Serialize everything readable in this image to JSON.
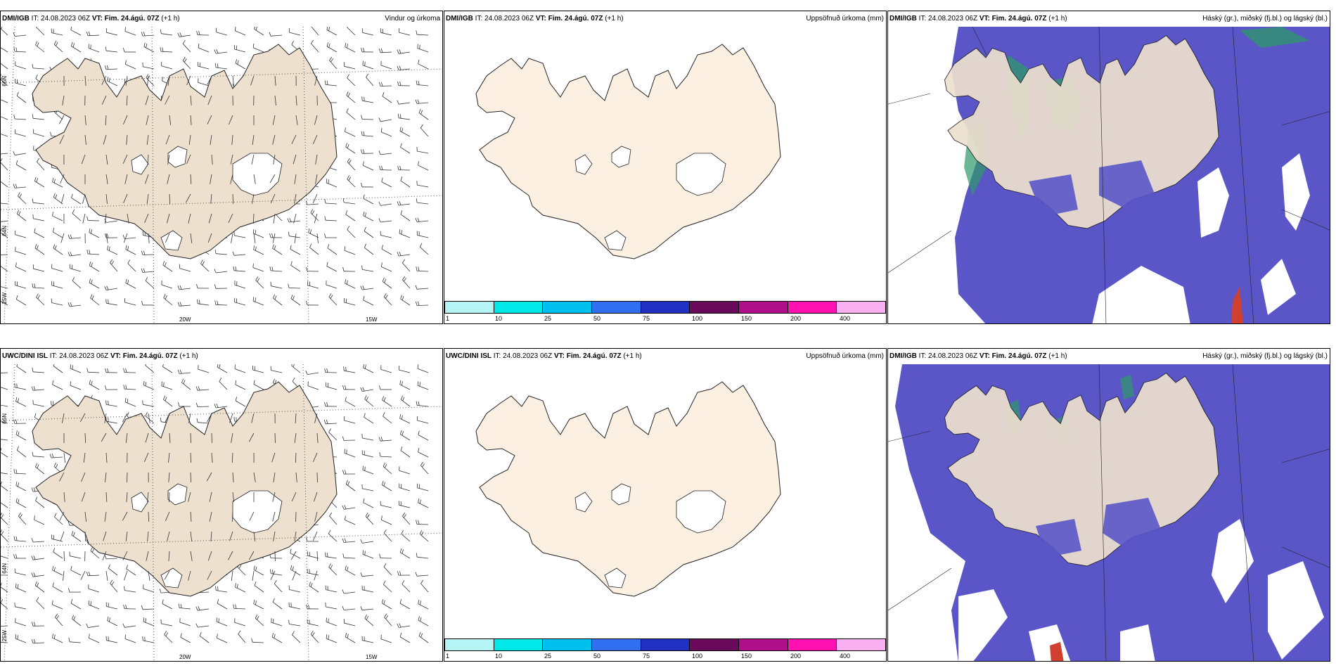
{
  "header": {
    "model_dmi": "DMI/IGB",
    "model_uwc": "UWC/DINI ISL",
    "it_label": "IT: 24.08.2023 06Z",
    "vt_label": "VT: Fim. 24.ágú. 07Z",
    "lead": "(+1 h)"
  },
  "titles": {
    "wind": "Vindur og úrkoma",
    "precip": "Uppsöfnuð úrkoma (mm)",
    "cloud": "Háský (gr.), miðský (fj.bl.) og lágský (bl.)"
  },
  "axes": {
    "lon_20w": "20W",
    "lon_15w": "15W",
    "lat_66n": "66N",
    "lat_64n": "64N",
    "lon_25w": "25W"
  },
  "colorbar": {
    "ticks": [
      "1",
      "10",
      "25",
      "50",
      "75",
      "100",
      "150",
      "200",
      "400"
    ],
    "colors": [
      "#b4f4f4",
      "#00e8e8",
      "#00c0f0",
      "#3070f0",
      "#2030c0",
      "#6a0a5a",
      "#b0108a",
      "#ff10b0",
      "#f8b0f0"
    ]
  },
  "colors": {
    "land": "#ede0cf",
    "land_light": "#fcf0e3",
    "ocean_cloud": "#5a56c8",
    "cloud_mid": "#2e9a6a"
  }
}
